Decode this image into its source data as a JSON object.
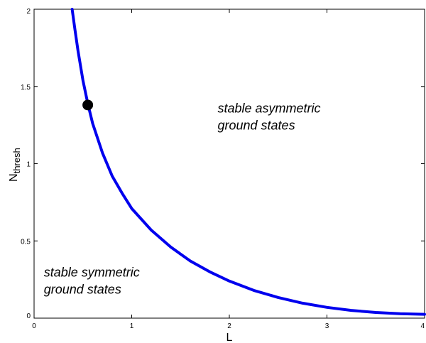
{
  "chart_data": {
    "type": "line",
    "title": "",
    "xlabel": "L",
    "ylabel": "N",
    "ylabel_subscript": "thresh",
    "xlim": [
      0,
      4
    ],
    "ylim": [
      0,
      2
    ],
    "x_ticks": [
      0,
      1,
      2,
      3,
      4
    ],
    "x_tick_labels": [
      "0",
      "1",
      "2",
      "3",
      "4"
    ],
    "y_ticks": [
      0,
      0.5,
      1,
      1.5,
      2
    ],
    "y_tick_labels": [
      "0",
      "0.5",
      "1",
      "1.5",
      "2"
    ],
    "grid": false,
    "series": [
      {
        "color": "#0000ee",
        "x": [
          0.39,
          0.42,
          0.45,
          0.5,
          0.55,
          0.6,
          0.7,
          0.8,
          0.9,
          1.0,
          1.2,
          1.4,
          1.6,
          1.8,
          2.0,
          2.25,
          2.5,
          2.75,
          3.0,
          3.25,
          3.5,
          3.75,
          4.0
        ],
        "y": [
          2.0,
          1.86,
          1.73,
          1.54,
          1.39,
          1.26,
          1.07,
          0.92,
          0.81,
          0.71,
          0.57,
          0.46,
          0.37,
          0.3,
          0.24,
          0.18,
          0.134,
          0.097,
          0.07,
          0.05,
          0.037,
          0.029,
          0.025
        ]
      }
    ],
    "marker": {
      "x": 0.55,
      "y": 1.38,
      "color": "#000000"
    },
    "annotations": [
      {
        "lines": [
          "stable asymmetric",
          "ground states"
        ],
        "x": 1.88,
        "y": 1.33
      },
      {
        "lines": [
          "stable symmetric",
          "ground states"
        ],
        "x": 0.1,
        "y": 0.27
      }
    ]
  }
}
